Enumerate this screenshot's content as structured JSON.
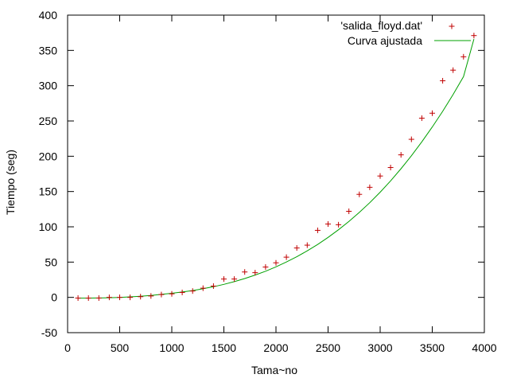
{
  "chart_data": {
    "type": "scatter",
    "title": "",
    "xlabel": "Tama~no",
    "ylabel": "Tiempo (seg)",
    "xlim": [
      0,
      4000
    ],
    "ylim": [
      -50,
      400
    ],
    "x_ticks": [
      0,
      500,
      1000,
      1500,
      2000,
      2500,
      3000,
      3500,
      4000
    ],
    "y_ticks": [
      -50,
      0,
      50,
      100,
      150,
      200,
      250,
      300,
      350,
      400
    ],
    "grid": false,
    "legend_position": "top-right",
    "series": [
      {
        "name": "'salida_floyd.dat'",
        "kind": "points",
        "marker": "plus",
        "color": "#c00000",
        "x": [
          100,
          200,
          300,
          400,
          500,
          600,
          700,
          800,
          900,
          1000,
          1100,
          1200,
          1300,
          1400,
          1500,
          1600,
          1700,
          1800,
          1900,
          2000,
          2100,
          2200,
          2300,
          2400,
          2500,
          2600,
          2700,
          2800,
          2900,
          3000,
          3100,
          3200,
          3300,
          3400,
          3500,
          3600,
          3700,
          3800,
          3900
        ],
        "y": [
          -1,
          -1,
          -1,
          0,
          0,
          0,
          1,
          2,
          4,
          5,
          7,
          9,
          13,
          16,
          26,
          26,
          36,
          35,
          43,
          49,
          57,
          70,
          74,
          95,
          104,
          103,
          122,
          146,
          156,
          172,
          184,
          202,
          224,
          254,
          261,
          307,
          322,
          341,
          371
        ]
      },
      {
        "name": "Curva ajustada",
        "kind": "line",
        "color": "#00a000",
        "x": [
          100,
          200,
          300,
          400,
          500,
          600,
          700,
          800,
          900,
          1000,
          1100,
          1200,
          1300,
          1400,
          1500,
          1600,
          1700,
          1800,
          1900,
          2000,
          2100,
          2200,
          2300,
          2400,
          2500,
          2600,
          2700,
          2800,
          2900,
          3000,
          3100,
          3200,
          3300,
          3400,
          3500,
          3600,
          3700,
          3800,
          3900
        ],
        "y": [
          -1,
          -1,
          -0.8,
          -0.5,
          0,
          0.7,
          1.6,
          2.8,
          4.2,
          5.8,
          7.6,
          9.7,
          12.2,
          15.1,
          18.5,
          22.3,
          26.7,
          31.6,
          37.1,
          43.3,
          50.1,
          57.6,
          65.9,
          75,
          85,
          95.8,
          107.6,
          120.4,
          134.2,
          149.1,
          165.1,
          182.3,
          200.7,
          220.4,
          241.4,
          263.7,
          287.5,
          312.8,
          366
        ]
      }
    ]
  }
}
